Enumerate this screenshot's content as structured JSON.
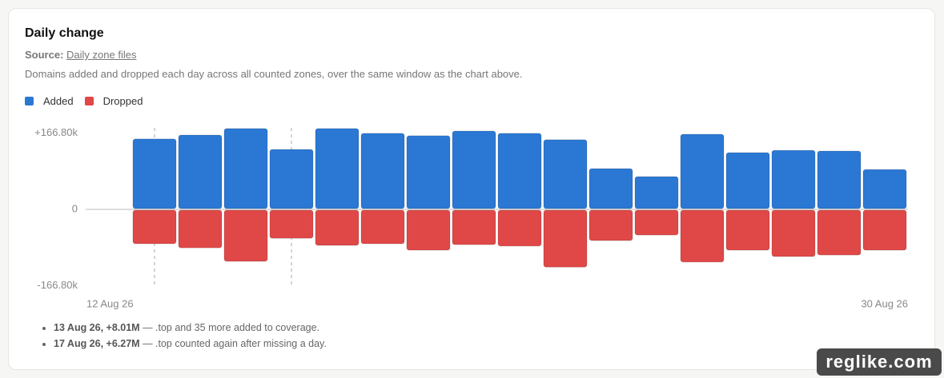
{
  "card": {
    "title": "Daily change",
    "source_label": "Source:",
    "source_link": "Daily zone files",
    "description": "Domains added and dropped each day across all counted zones, over the same window as the chart above.",
    "notes": [
      {
        "bold": "13 Aug 26, +8.01M",
        "text": "— .top and 35 more added to coverage."
      },
      {
        "bold": "17 Aug 26, +6.27M",
        "text": "— .top counted again after missing a day."
      }
    ],
    "watermark": "reglike.com"
  },
  "chart_data": {
    "type": "bar",
    "categories": [
      null,
      null,
      null,
      null,
      null,
      null,
      null,
      null,
      null,
      null,
      null,
      null,
      null,
      null,
      null,
      null,
      null
    ],
    "x_axis_labels": [
      "12 Aug 26",
      "30 Aug 26"
    ],
    "series": [
      {
        "name": "Added",
        "color": "#2b78d4",
        "values": [
          153700,
          162400,
          176400,
          131000,
          176400,
          166000,
          160700,
          171000,
          166000,
          152000,
          89000,
          71600,
          164000,
          124000,
          129000,
          127500,
          87000
        ]
      },
      {
        "name": "Dropped",
        "color": "#e04848",
        "values": [
          -75000,
          -84000,
          -113500,
          -63000,
          -78600,
          -75000,
          -89000,
          -77000,
          -80000,
          -126000,
          -68000,
          -56000,
          -115000,
          -89000,
          -103000,
          -99600,
          -89000
        ]
      }
    ],
    "ylim": [
      -185000,
      185000
    ],
    "yticks": [
      {
        "value": 166800,
        "label": "+166.80k"
      },
      0,
      {
        "value": -166800,
        "label": "-166.80k"
      }
    ]
  }
}
